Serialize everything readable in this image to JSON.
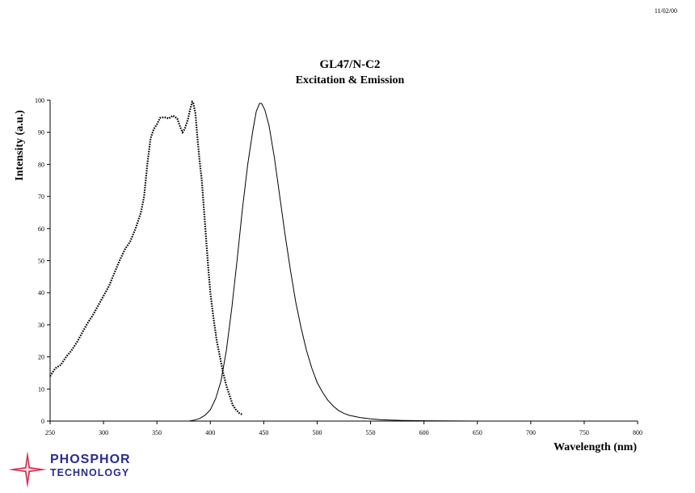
{
  "date": "11/02/00",
  "brand": {
    "line1": "PHOSPHOR",
    "line2": "TECHNOLOGY",
    "color": "#2a2d8f",
    "star_color": "#d6274a"
  },
  "chart_data": {
    "type": "line",
    "title": "GL47/N-C2",
    "subtitle": "Excitation & Emission",
    "xlabel": "Wavelength (nm)",
    "ylabel": "Intensity (a.u.)",
    "xlim": [
      250,
      800
    ],
    "ylim": [
      0,
      100
    ],
    "x_ticks": [
      250,
      300,
      350,
      400,
      450,
      500,
      550,
      600,
      650,
      700,
      750,
      800
    ],
    "y_ticks": [
      0,
      10,
      20,
      30,
      40,
      50,
      60,
      70,
      80,
      90,
      100
    ],
    "grid": false,
    "series": [
      {
        "style": "dotted",
        "color": "#000000",
        "points": [
          [
            250,
            14
          ],
          [
            255,
            16.5
          ],
          [
            260,
            17.5
          ],
          [
            265,
            20
          ],
          [
            270,
            22
          ],
          [
            275,
            24.5
          ],
          [
            280,
            27.5
          ],
          [
            285,
            30.5
          ],
          [
            290,
            33
          ],
          [
            295,
            36
          ],
          [
            300,
            39
          ],
          [
            305,
            42
          ],
          [
            310,
            46
          ],
          [
            315,
            50
          ],
          [
            320,
            53.5
          ],
          [
            325,
            56
          ],
          [
            330,
            60
          ],
          [
            335,
            65
          ],
          [
            338,
            70
          ],
          [
            341,
            80
          ],
          [
            344,
            88
          ],
          [
            347,
            91
          ],
          [
            350,
            92.5
          ],
          [
            353,
            94.5
          ],
          [
            357,
            94.7
          ],
          [
            361,
            94.3
          ],
          [
            365,
            95.2
          ],
          [
            369,
            94.3
          ],
          [
            372,
            91.5
          ],
          [
            374,
            90
          ],
          [
            376,
            91
          ],
          [
            379,
            94
          ],
          [
            381,
            97
          ],
          [
            383,
            99.5
          ],
          [
            384,
            99.2
          ],
          [
            386,
            96
          ],
          [
            388,
            88
          ],
          [
            390,
            81
          ],
          [
            392,
            75
          ],
          [
            394,
            66
          ],
          [
            396,
            57
          ],
          [
            398,
            48
          ],
          [
            400,
            40
          ],
          [
            403,
            32
          ],
          [
            406,
            25
          ],
          [
            409,
            20
          ],
          [
            412,
            15
          ],
          [
            415,
            11
          ],
          [
            418,
            8
          ],
          [
            421,
            5
          ],
          [
            424,
            3.5
          ],
          [
            427,
            2.5
          ],
          [
            430,
            2
          ]
        ]
      },
      {
        "style": "solid",
        "color": "#000000",
        "points": [
          [
            380,
            0
          ],
          [
            385,
            0.3
          ],
          [
            390,
            0.8
          ],
          [
            395,
            1.8
          ],
          [
            400,
            3.5
          ],
          [
            405,
            7
          ],
          [
            410,
            12.5
          ],
          [
            415,
            22
          ],
          [
            420,
            35
          ],
          [
            425,
            50
          ],
          [
            430,
            66
          ],
          [
            435,
            80
          ],
          [
            440,
            91
          ],
          [
            443,
            96.5
          ],
          [
            446,
            99
          ],
          [
            448,
            99
          ],
          [
            451,
            97
          ],
          [
            455,
            92
          ],
          [
            460,
            82
          ],
          [
            465,
            70
          ],
          [
            470,
            58
          ],
          [
            475,
            47
          ],
          [
            480,
            37
          ],
          [
            485,
            29
          ],
          [
            490,
            22
          ],
          [
            495,
            16.5
          ],
          [
            500,
            12
          ],
          [
            505,
            9
          ],
          [
            510,
            6.5
          ],
          [
            515,
            4.7
          ],
          [
            520,
            3.3
          ],
          [
            525,
            2.4
          ],
          [
            530,
            1.8
          ],
          [
            540,
            1.1
          ],
          [
            550,
            0.7
          ],
          [
            560,
            0.4
          ],
          [
            580,
            0.2
          ],
          [
            600,
            0.1
          ],
          [
            650,
            0
          ]
        ]
      }
    ]
  }
}
